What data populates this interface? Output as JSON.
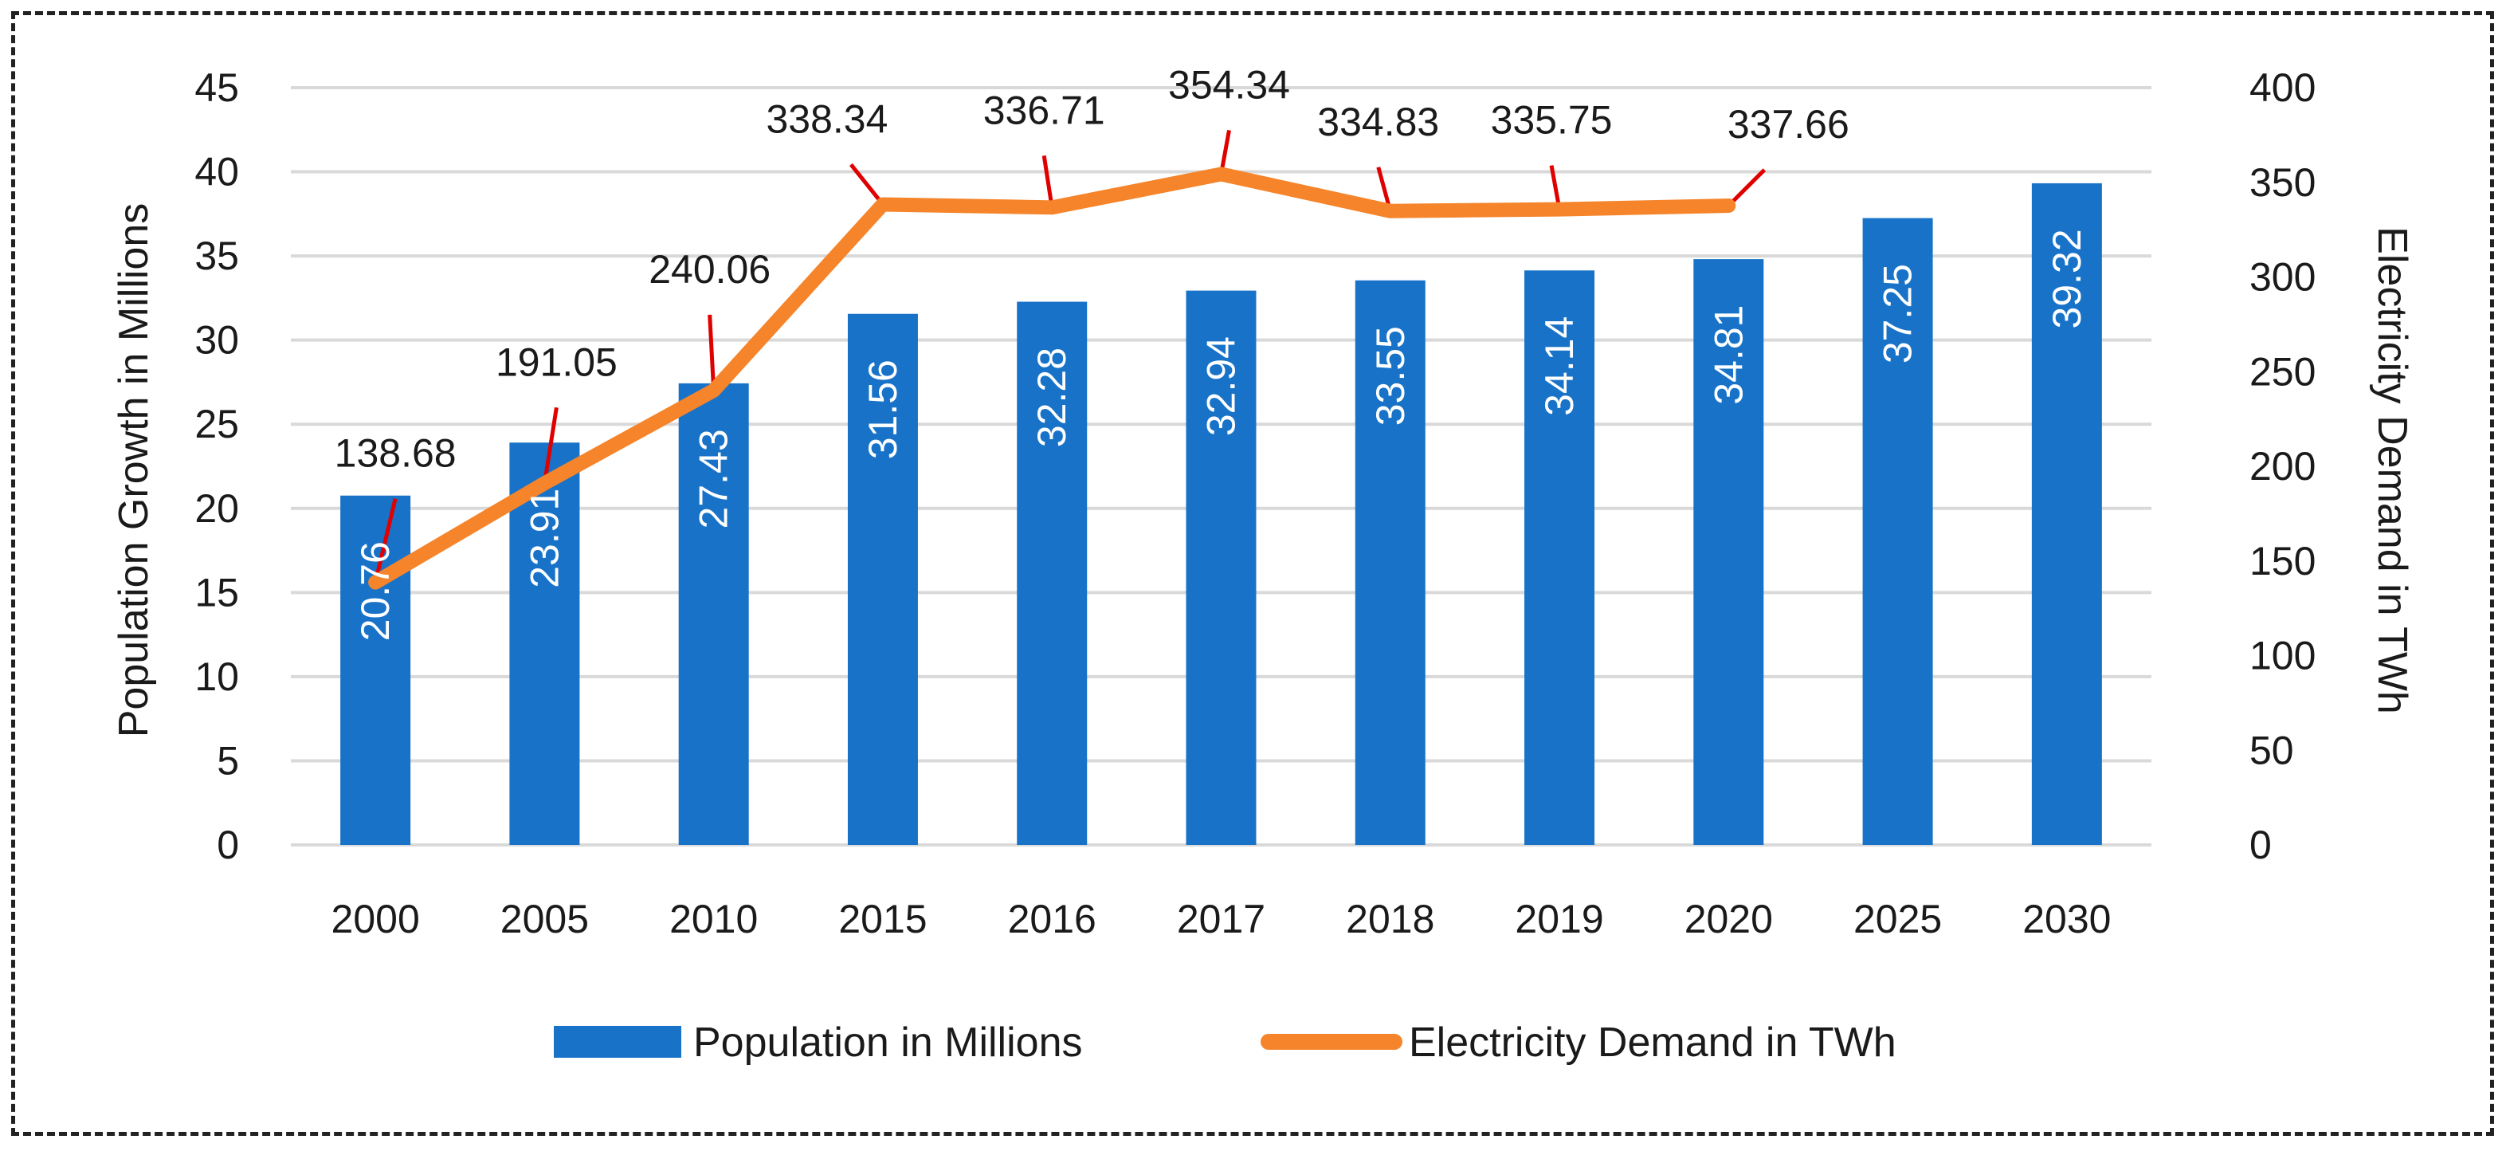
{
  "chart_data": {
    "type": "bar+line",
    "categories": [
      "2000",
      "2005",
      "2010",
      "2015",
      "2016",
      "2017",
      "2018",
      "2019",
      "2020",
      "2025",
      "2030"
    ],
    "series": [
      {
        "name": "Population in Millions",
        "type": "bar",
        "axis": "left",
        "values": [
          20.76,
          23.91,
          27.43,
          31.56,
          32.28,
          32.94,
          33.55,
          34.14,
          34.81,
          37.25,
          39.32
        ],
        "labels": [
          "20.76",
          "23.91",
          "27.43",
          "31.56",
          "32.28",
          "32.94",
          "33.55",
          "34.14",
          "34.81",
          "37.25",
          "39.32"
        ]
      },
      {
        "name": "Electricity Demand in TWh",
        "type": "line",
        "axis": "right",
        "values": [
          138.68,
          191.05,
          240.06,
          338.34,
          336.71,
          354.34,
          334.83,
          335.75,
          337.66,
          null,
          null
        ],
        "labels": [
          "138.68",
          "191.05",
          "240.06",
          "338.34",
          "336.71",
          "354.34",
          "334.83",
          "335.75",
          "337.66",
          "",
          ""
        ]
      }
    ],
    "y_left": {
      "label": "Population Growth in Millions",
      "range": [
        0,
        45
      ],
      "ticks": [
        "0",
        "5",
        "10",
        "15",
        "20",
        "25",
        "30",
        "35",
        "40",
        "45"
      ]
    },
    "y_right": {
      "label": "Electricity Demand in TWh",
      "range": [
        0,
        400
      ],
      "ticks": [
        "0",
        "50",
        "100",
        "150",
        "200",
        "250",
        "300",
        "350",
        "400"
      ]
    },
    "grid": true,
    "legend_position": "bottom",
    "colors": {
      "bar": "#1873C8",
      "line": "#F5842A",
      "leader": "#E00000",
      "grid": "#D9D9D9"
    }
  }
}
